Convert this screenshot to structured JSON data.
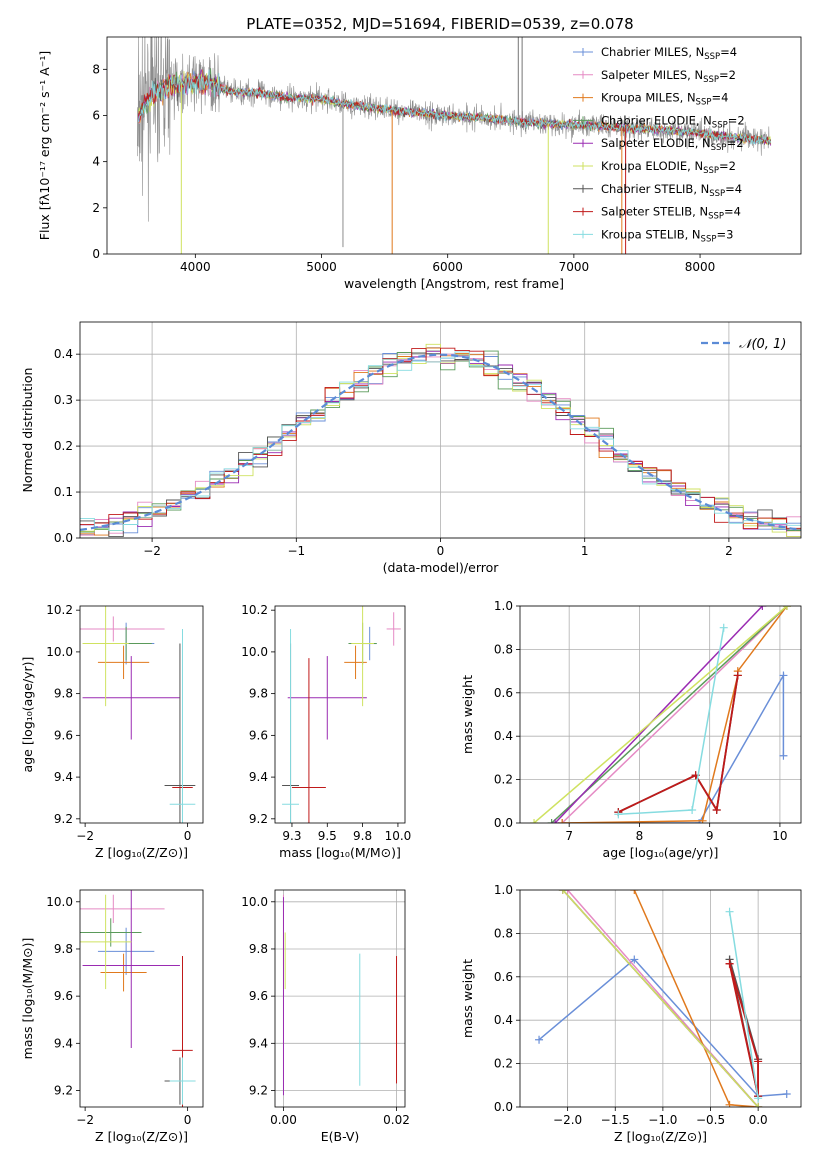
{
  "figure": {
    "title": "PLATE=0352, MJD=51694, FIBERID=0539, z=0.078"
  },
  "colors": {
    "chabrier_miles": "#6a8fd8",
    "salpeter_miles": "#e58ac4",
    "kroupa_miles": "#e0791d",
    "chabrier_elodie": "#5a9a5a",
    "salpeter_elodie": "#9a2bb2",
    "kroupa_elodie": "#cfe260",
    "chabrier_stelib": "#555555",
    "salpeter_stelib": "#c01a1a",
    "kroupa_stelib": "#86dce0",
    "observed": "#8c8c8c",
    "gaussian": "#5b8bd6",
    "grid": "#b0b0b0"
  },
  "chart_data": [
    {
      "id": "spectrum",
      "type": "line",
      "title": "PLATE=0352, MJD=51694, FIBERID=0539, z=0.078",
      "xlabel": "wavelength [Angstrom, rest frame]",
      "ylabel": "Flux [fλ10⁻¹⁷ erg cm⁻² s⁻¹ A⁻¹]",
      "xlim": [
        3300,
        8800
      ],
      "ylim": [
        0,
        9.4
      ],
      "xticks": [
        4000,
        5000,
        6000,
        7000,
        8000
      ],
      "yticks": [
        0,
        2,
        4,
        6,
        8
      ],
      "grid": false,
      "legend_position": "top-right",
      "legend": [
        {
          "key": "chabrier_miles",
          "label": "Chabrier MILES, N",
          "sub": "SSP",
          "suffix": "=4"
        },
        {
          "key": "salpeter_miles",
          "label": "Salpeter MILES, N",
          "sub": "SSP",
          "suffix": "=2"
        },
        {
          "key": "kroupa_miles",
          "label": "Kroupa MILES, N",
          "sub": "SSP",
          "suffix": "=4"
        },
        {
          "key": "chabrier_elodie",
          "label": "Chabrier ELODIE, N",
          "sub": "SSP",
          "suffix": "=2"
        },
        {
          "key": "salpeter_elodie",
          "label": "Salpeter ELODIE, N",
          "sub": "SSP",
          "suffix": "=2"
        },
        {
          "key": "kroupa_elodie",
          "label": "Kroupa ELODIE, N",
          "sub": "SSP",
          "suffix": "=2"
        },
        {
          "key": "chabrier_stelib",
          "label": "Chabrier STELIB, N",
          "sub": "SSP",
          "suffix": "=4"
        },
        {
          "key": "salpeter_stelib",
          "label": "Salpeter STELIB, N",
          "sub": "SSP",
          "suffix": "=4"
        },
        {
          "key": "kroupa_stelib",
          "label": "Kroupa STELIB, N",
          "sub": "SSP",
          "suffix": "=3"
        }
      ],
      "continuum": [
        [
          3550,
          6.0
        ],
        [
          3650,
          6.9
        ],
        [
          3800,
          7.3
        ],
        [
          3950,
          7.5
        ],
        [
          4100,
          7.4
        ],
        [
          4300,
          7.0
        ],
        [
          4500,
          7.0
        ],
        [
          4700,
          6.8
        ],
        [
          5000,
          6.7
        ],
        [
          5300,
          6.4
        ],
        [
          5600,
          6.2
        ],
        [
          6000,
          6.0
        ],
        [
          6300,
          5.9
        ],
        [
          6600,
          5.7
        ],
        [
          7000,
          5.6
        ],
        [
          7300,
          5.5
        ],
        [
          7600,
          5.4
        ],
        [
          7900,
          5.3
        ],
        [
          8200,
          5.1
        ],
        [
          8550,
          4.9
        ]
      ],
      "dips": [
        [
          3889,
          0.0,
          "kroupa_elodie"
        ],
        [
          5170,
          0.3,
          "observed"
        ],
        [
          5560,
          0.0,
          "kroupa_miles"
        ],
        [
          6797,
          0.0,
          "kroupa_elodie"
        ],
        [
          7380,
          0.0,
          "kroupa_miles"
        ],
        [
          7410,
          0.0,
          "salpeter_stelib"
        ]
      ]
    },
    {
      "id": "residual_hist",
      "type": "histogram",
      "xlabel": "(data-model)/error",
      "ylabel": "Normed distribution",
      "xlim": [
        -2.5,
        2.5
      ],
      "ylim": [
        0,
        0.47
      ],
      "xticks": [
        -2,
        -1,
        0,
        1,
        2
      ],
      "yticks": [
        0.0,
        0.1,
        0.2,
        0.3,
        0.4
      ],
      "grid": true,
      "bin_width": 0.1,
      "gaussian_label": "𝒩(0, 1)",
      "legend_position": "top-right"
    },
    {
      "id": "age_vs_Z",
      "type": "scatter_errorbar",
      "xlabel": "Z [log₁₀(Z/Z⊙)]",
      "ylabel": "age  [log₁₀(age/yr)]",
      "xlim": [
        -2.1,
        0.3
      ],
      "ylim": [
        9.18,
        10.22
      ],
      "xticks": [
        -2,
        0
      ],
      "yticks": [
        9.2,
        9.4,
        9.6,
        9.8,
        10.0,
        10.2
      ],
      "points": [
        {
          "key": "chabrier_miles",
          "x": -1.2,
          "y": 10.04,
          "xerr": 0.55,
          "yerr": 0.1
        },
        {
          "key": "salpeter_miles",
          "x": -1.45,
          "y": 10.11,
          "xerr": 1.0,
          "yerr": 0.06
        },
        {
          "key": "kroupa_miles",
          "x": -1.25,
          "y": 9.95,
          "xerr": 0.5,
          "yerr": 0.08
        },
        {
          "key": "chabrier_elodie",
          "x": -1.2,
          "y": 10.04,
          "xerr": 0.5,
          "yerr": 0.08
        },
        {
          "key": "salpeter_elodie",
          "x": -1.1,
          "y": 9.78,
          "xerr": 0.95,
          "yerr": 0.2
        },
        {
          "key": "kroupa_elodie",
          "x": -1.6,
          "y": 10.04,
          "xerr": 0.45,
          "yerr": 0.3
        },
        {
          "key": "chabrier_stelib",
          "x": -0.15,
          "y": 9.36,
          "xerr": 0.3,
          "yerr": 0.68
        },
        {
          "key": "salpeter_stelib",
          "x": -0.1,
          "y": 9.35,
          "xerr": 0.2,
          "yerr": 0.62
        },
        {
          "key": "kroupa_stelib",
          "x": -0.1,
          "y": 9.27,
          "xerr": 0.25,
          "yerr": 0.84
        }
      ]
    },
    {
      "id": "age_vs_mass",
      "type": "scatter_errorbar",
      "xlabel": "mass [log₁₀(M/M⊙)]",
      "ylabel": "",
      "xlim": [
        9.13,
        10.05
      ],
      "ylim": [
        9.18,
        10.22
      ],
      "xticks": [
        9.25,
        9.5,
        9.75,
        10.0
      ],
      "yticks": [
        9.2,
        9.4,
        9.6,
        9.8,
        10.0,
        10.2
      ],
      "points": [
        {
          "key": "chabrier_miles",
          "x": 9.8,
          "y": 10.04,
          "xerr": 0.05,
          "yerr": 0.08
        },
        {
          "key": "salpeter_miles",
          "x": 9.97,
          "y": 10.11,
          "xerr": 0.05,
          "yerr": 0.08
        },
        {
          "key": "kroupa_miles",
          "x": 9.7,
          "y": 9.95,
          "xerr": 0.08,
          "yerr": 0.08
        },
        {
          "key": "chabrier_elodie",
          "x": 9.75,
          "y": 10.04,
          "xerr": 0.1,
          "yerr": 0.1
        },
        {
          "key": "salpeter_elodie",
          "x": 9.5,
          "y": 9.78,
          "xerr": 0.28,
          "yerr": 0.2
        },
        {
          "key": "kroupa_elodie",
          "x": 9.75,
          "y": 10.04,
          "xerr": 0.08,
          "yerr": 0.3
        },
        {
          "key": "chabrier_stelib",
          "x": 9.24,
          "y": 9.36,
          "xerr": 0.06,
          "yerr": 0.68
        },
        {
          "key": "salpeter_stelib",
          "x": 9.37,
          "y": 9.35,
          "xerr": 0.12,
          "yerr": 0.62
        },
        {
          "key": "kroupa_stelib",
          "x": 9.24,
          "y": 9.27,
          "xerr": 0.06,
          "yerr": 0.84
        }
      ]
    },
    {
      "id": "massweight_vs_age",
      "type": "line",
      "xlabel": "age  [log₁₀(age/yr)]",
      "ylabel": "mass weight",
      "xlim": [
        6.3,
        10.3
      ],
      "ylim": [
        0,
        1
      ],
      "xticks": [
        7,
        8,
        9,
        10
      ],
      "yticks": [
        0.0,
        0.2,
        0.4,
        0.6,
        0.8,
        1.0
      ],
      "grid": true,
      "series": [
        {
          "key": "chabrier_miles",
          "x": [
            6.9,
            8.85,
            10.05,
            10.05
          ],
          "y": [
            0.0,
            0.0,
            0.68,
            0.31
          ]
        },
        {
          "key": "salpeter_miles",
          "x": [
            6.9,
            10.1
          ],
          "y": [
            0.0,
            1.0
          ]
        },
        {
          "key": "kroupa_miles",
          "x": [
            6.9,
            8.9,
            9.4,
            9.4,
            10.1
          ],
          "y": [
            0.0,
            0.01,
            0.68,
            0.7,
            1.0
          ]
        },
        {
          "key": "chabrier_elodie",
          "x": [
            6.75,
            10.1
          ],
          "y": [
            0.0,
            1.0
          ]
        },
        {
          "key": "salpeter_elodie",
          "x": [
            6.8,
            9.75
          ],
          "y": [
            0.0,
            1.0
          ]
        },
        {
          "key": "kroupa_elodie",
          "x": [
            6.5,
            10.1
          ],
          "y": [
            0.0,
            1.0
          ]
        },
        {
          "key": "chabrier_stelib",
          "x": [
            7.7,
            8.8,
            9.1,
            9.4
          ],
          "y": [
            0.05,
            0.22,
            0.06,
            0.68
          ]
        },
        {
          "key": "salpeter_stelib",
          "x": [
            7.7,
            8.8,
            9.1,
            9.4
          ],
          "y": [
            0.05,
            0.22,
            0.06,
            0.68
          ]
        },
        {
          "key": "kroupa_stelib",
          "x": [
            7.7,
            8.75,
            9.2
          ],
          "y": [
            0.04,
            0.06,
            0.9
          ]
        }
      ]
    },
    {
      "id": "mass_vs_Z",
      "type": "scatter_errorbar",
      "xlabel": "Z [log₁₀(Z/Z⊙)]",
      "ylabel": "mass [log₁₀(M/M⊙)]",
      "xlim": [
        -2.1,
        0.3
      ],
      "ylim": [
        9.13,
        10.05
      ],
      "xticks": [
        -2,
        0
      ],
      "yticks": [
        9.2,
        9.4,
        9.6,
        9.8,
        10.0
      ],
      "points": [
        {
          "key": "chabrier_miles",
          "x": -1.2,
          "y": 9.79,
          "xerr": 0.55,
          "yerr": 0.1
        },
        {
          "key": "salpeter_miles",
          "x": -1.45,
          "y": 9.97,
          "xerr": 1.0,
          "yerr": 0.06
        },
        {
          "key": "kroupa_miles",
          "x": -1.25,
          "y": 9.7,
          "xerr": 0.45,
          "yerr": 0.08
        },
        {
          "key": "chabrier_elodie",
          "x": -1.5,
          "y": 9.87,
          "xerr": 0.6,
          "yerr": 0.06
        },
        {
          "key": "salpeter_elodie",
          "x": -1.1,
          "y": 9.73,
          "xerr": 0.95,
          "yerr": 0.35
        },
        {
          "key": "kroupa_elodie",
          "x": -1.6,
          "y": 9.83,
          "xerr": 0.5,
          "yerr": 0.2
        },
        {
          "key": "chabrier_stelib",
          "x": -0.15,
          "y": 9.24,
          "xerr": 0.3,
          "yerr": 0.1
        },
        {
          "key": "salpeter_stelib",
          "x": -0.1,
          "y": 9.37,
          "xerr": 0.2,
          "yerr": 0.4
        },
        {
          "key": "kroupa_stelib",
          "x": -0.1,
          "y": 9.24,
          "xerr": 0.25,
          "yerr": 0.1
        }
      ]
    },
    {
      "id": "mass_vs_ebv",
      "type": "scatter_errorbar",
      "xlabel": "E(B-V)",
      "ylabel": "",
      "xlim": [
        -0.0015,
        0.0215
      ],
      "ylim": [
        9.13,
        10.05
      ],
      "xticks": [
        0.0,
        0.02
      ],
      "yticks": [
        9.2,
        9.4,
        9.6,
        9.8,
        10.0
      ],
      "grid": true,
      "points": [
        {
          "key": "salpeter_miles",
          "x": 0.0,
          "y": 9.88,
          "xerr": 0.0,
          "yerr": 0.15
        },
        {
          "key": "salpeter_elodie",
          "x": 0.0,
          "y": 9.6,
          "xerr": 0.0,
          "yerr": 0.42
        },
        {
          "key": "kroupa_elodie",
          "x": 0.0003,
          "y": 9.75,
          "xerr": 0.0,
          "yerr": 0.12
        },
        {
          "key": "kroupa_stelib",
          "x": 0.0135,
          "y": 9.5,
          "xerr": 0.0,
          "yerr": 0.28
        },
        {
          "key": "salpeter_stelib",
          "x": 0.02,
          "y": 9.5,
          "xerr": 0.0,
          "yerr": 0.27
        }
      ]
    },
    {
      "id": "massweight_vs_Z",
      "type": "line",
      "xlabel": "Z [log₁₀(Z/Z⊙)]",
      "ylabel": "mass weight",
      "xlim": [
        -2.5,
        0.45
      ],
      "ylim": [
        0,
        1
      ],
      "xticks": [
        -2.0,
        -1.5,
        -1.0,
        -0.5,
        0.0
      ],
      "yticks": [
        0.0,
        0.2,
        0.4,
        0.6,
        0.8,
        1.0
      ],
      "grid": true,
      "series": [
        {
          "key": "chabrier_miles",
          "x": [
            -2.3,
            -1.3,
            0.0,
            0.3
          ],
          "y": [
            0.31,
            0.68,
            0.05,
            0.06
          ]
        },
        {
          "key": "salpeter_miles",
          "x": [
            -2.0,
            0.0
          ],
          "y": [
            1.0,
            0.0
          ]
        },
        {
          "key": "kroupa_miles",
          "x": [
            -1.3,
            -0.3,
            0.0
          ],
          "y": [
            1.0,
            0.01,
            0.0
          ]
        },
        {
          "key": "chabrier_elodie",
          "x": [
            -2.05,
            0.0
          ],
          "y": [
            1.0,
            0.0
          ]
        },
        {
          "key": "salpeter_elodie",
          "x": [
            -2.05,
            0.0
          ],
          "y": [
            1.0,
            0.0
          ]
        },
        {
          "key": "kroupa_elodie",
          "x": [
            -2.05,
            0.0
          ],
          "y": [
            1.0,
            0.0
          ]
        },
        {
          "key": "chabrier_stelib",
          "x": [
            -0.3,
            0.0,
            0.0,
            -0.3
          ],
          "y": [
            0.68,
            0.22,
            0.05,
            0.68
          ]
        },
        {
          "key": "salpeter_stelib",
          "x": [
            -0.3,
            0.0,
            0.0,
            -0.3
          ],
          "y": [
            0.66,
            0.21,
            0.05,
            0.66
          ]
        },
        {
          "key": "kroupa_stelib",
          "x": [
            -0.3,
            0.0
          ],
          "y": [
            0.9,
            0.04
          ]
        }
      ]
    }
  ]
}
